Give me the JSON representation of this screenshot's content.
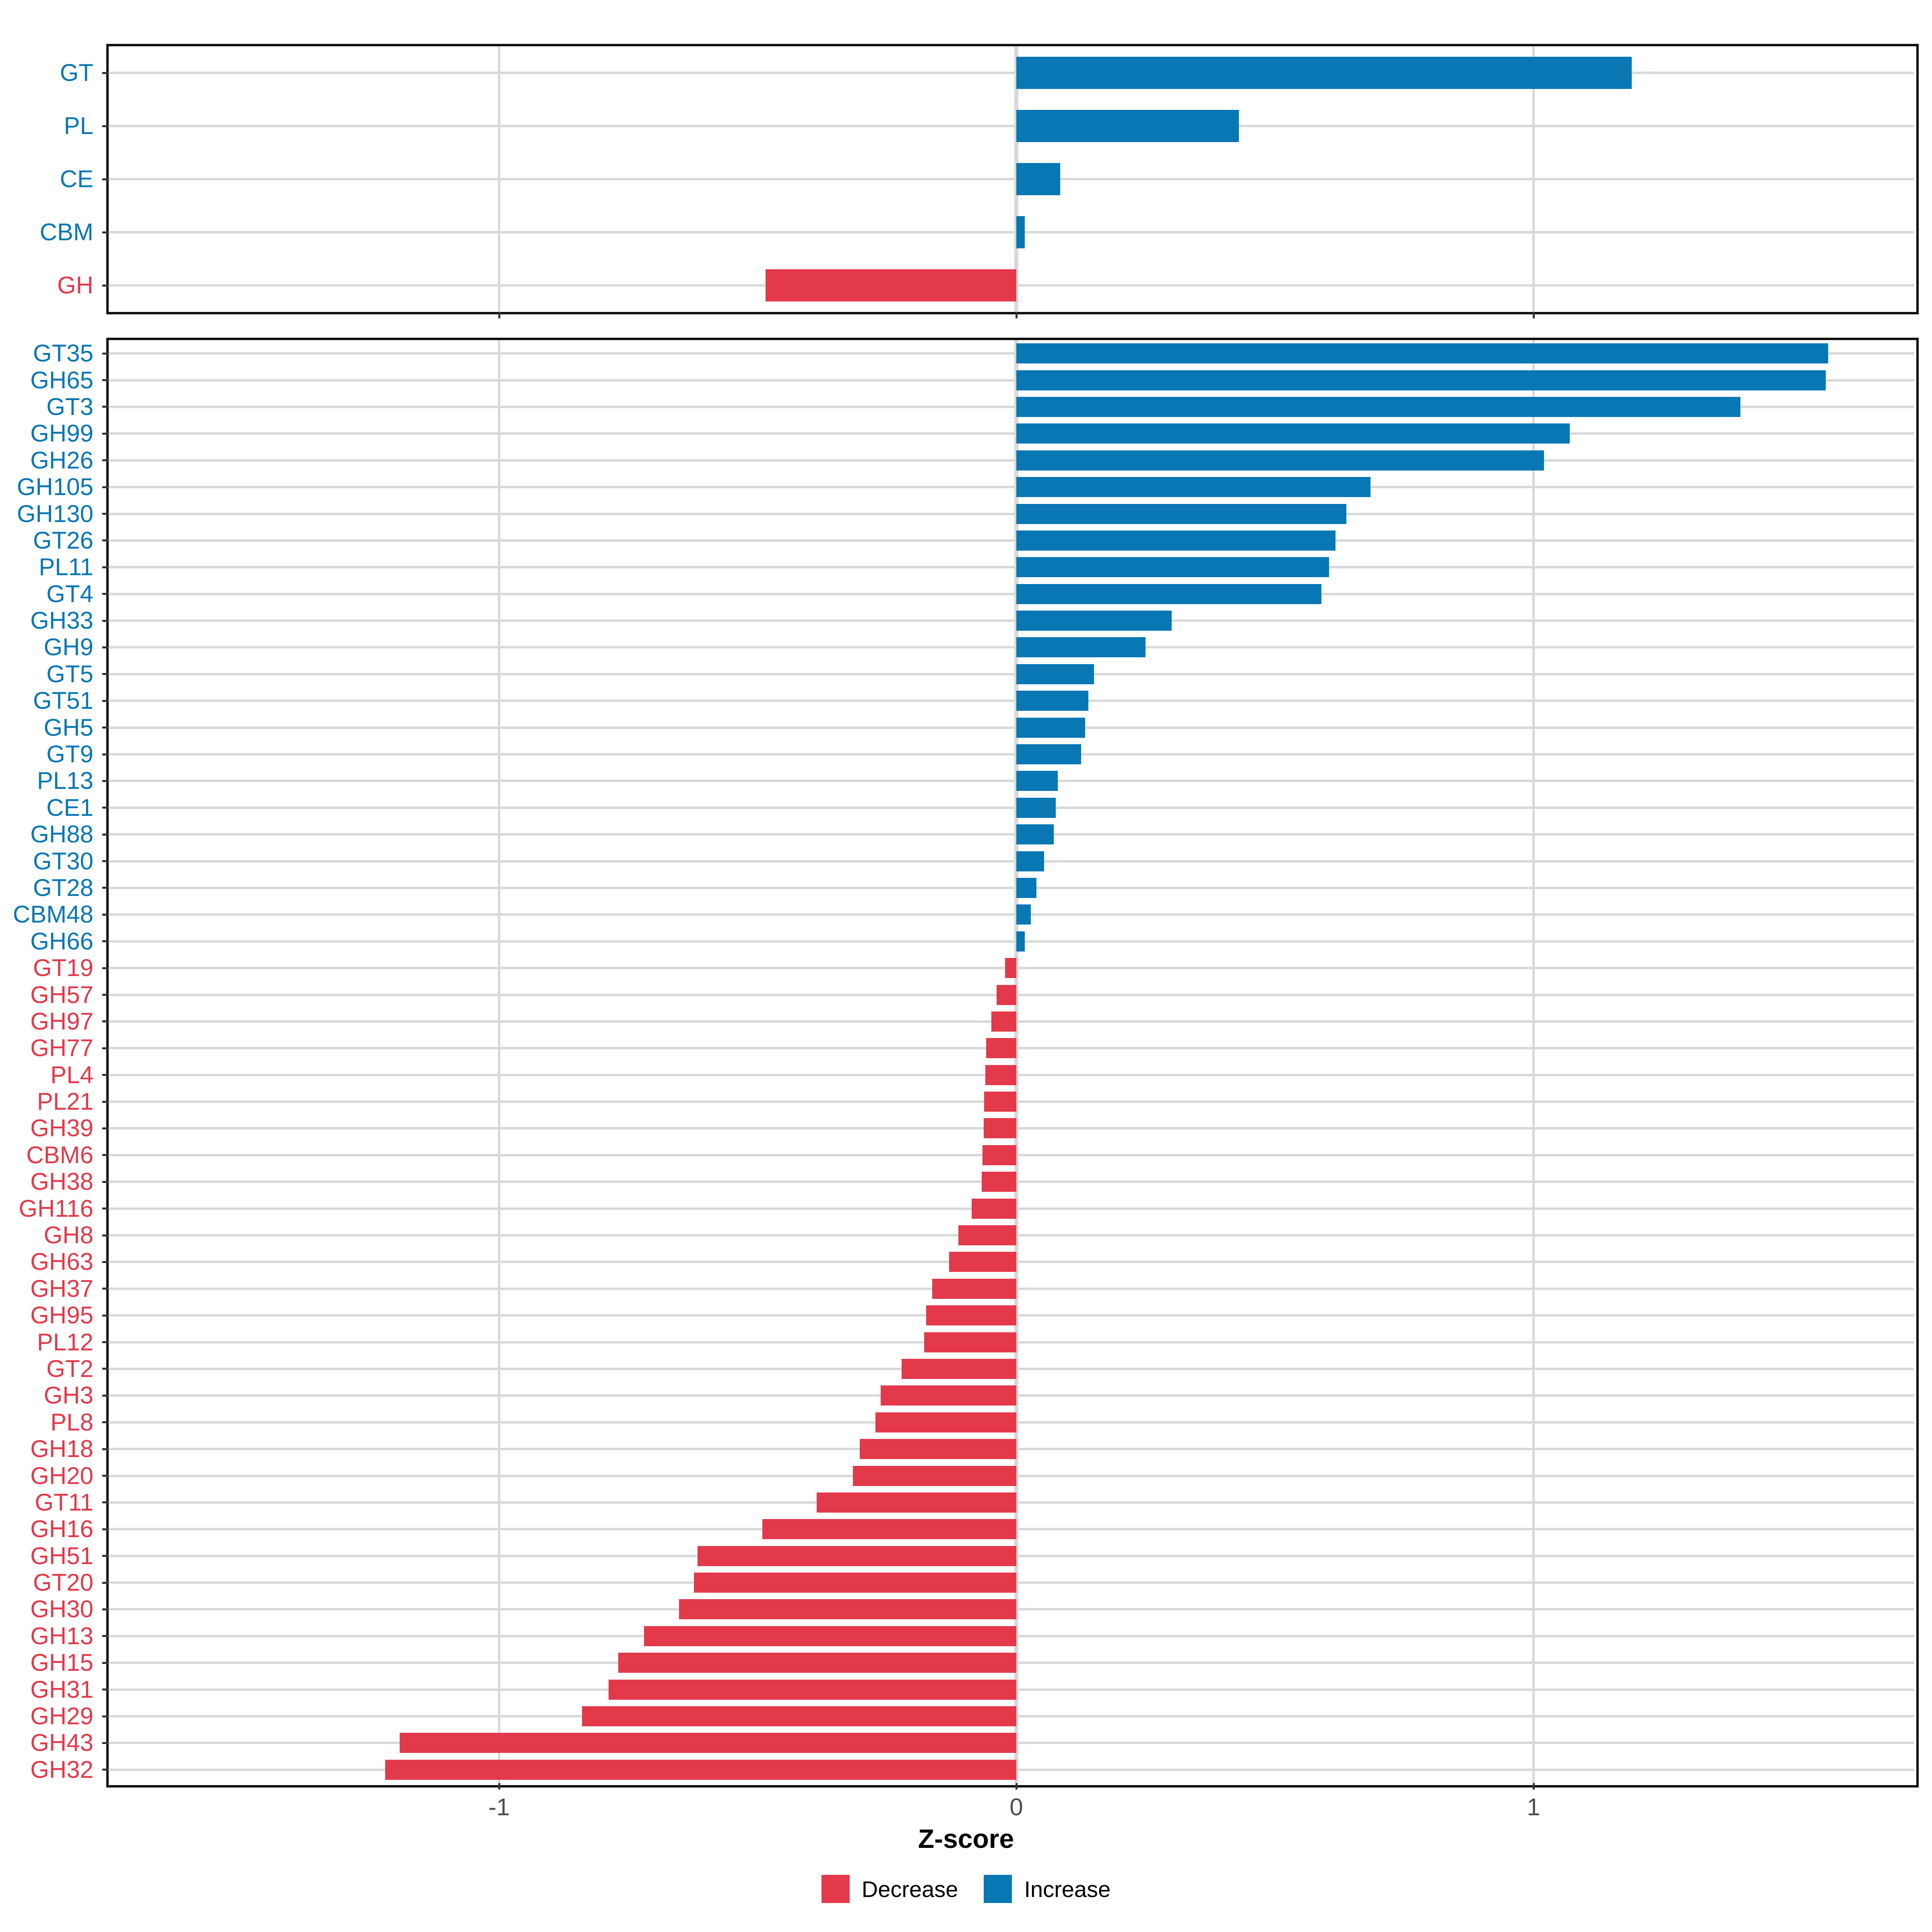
{
  "figure": {
    "background": "#ffffff",
    "description": "Two-panel horizontal bar chart of CAZyme Z-scores: top panel shows CAZyme classes, bottom panel shows CAZyme families, bars colored by direction of change"
  },
  "axis": {
    "xlabel": "Z-score",
    "tick_labels": [
      "-1",
      "0",
      "1"
    ],
    "tick_values": [
      -1,
      0,
      1
    ]
  },
  "legend": {
    "position": "bottom",
    "entries": [
      {
        "label": "Decrease",
        "color": "#e3394a"
      },
      {
        "label": "Increase",
        "color": "#0877b4"
      }
    ]
  },
  "colors": {
    "increase": "#0877b4",
    "decrease": "#e3394a",
    "gridline": "#d9d9d9",
    "axis_text": "#4d4d4d",
    "tick_mark": "#333333",
    "panel_border": "#111111"
  },
  "chart_data": [
    {
      "type": "bar",
      "orientation": "horizontal",
      "panel": "cazyme-classes",
      "title": "",
      "xlabel": "",
      "ylabel": "",
      "xlim": [
        -1.75,
        1.74
      ],
      "x_ticks": [
        -1,
        0,
        1
      ],
      "x_tick_labels_shown": false,
      "grid": true,
      "color_rule": "positive values use increase color, negative values use decrease color; y-axis labels colored the same way",
      "categories": [
        "GT",
        "PL",
        "CE",
        "CBM",
        "GH"
      ],
      "values": [
        1.19,
        0.43,
        0.085,
        0.016,
        -0.485
      ]
    },
    {
      "type": "bar",
      "orientation": "horizontal",
      "panel": "cazyme-families",
      "title": "",
      "xlabel": "Z-score",
      "ylabel": "",
      "xlim": [
        -1.75,
        1.74
      ],
      "x_ticks": [
        -1,
        0,
        1
      ],
      "x_tick_labels_shown": true,
      "grid": true,
      "color_rule": "positive values use increase color, negative values use decrease color; y-axis labels colored the same way",
      "categories": [
        "GT35",
        "GH65",
        "GT3",
        "GH99",
        "GH26",
        "GH105",
        "GH130",
        "GT26",
        "PL11",
        "GT4",
        "GH33",
        "GH9",
        "GT5",
        "GT51",
        "GH5",
        "GT9",
        "PL13",
        "CE1",
        "GH88",
        "GT30",
        "GT28",
        "CBM48",
        "GH66",
        "GT19",
        "GH57",
        "GH97",
        "GH77",
        "PL4",
        "PL21",
        "GH39",
        "CBM6",
        "GH38",
        "GH116",
        "GH8",
        "GH63",
        "GH37",
        "GH95",
        "PL12",
        "GT2",
        "GH3",
        "PL8",
        "GH18",
        "GH20",
        "GT11",
        "GH16",
        "GH51",
        "GT20",
        "GH30",
        "GH13",
        "GH15",
        "GH31",
        "GH29",
        "GH43",
        "GH32"
      ],
      "values": [
        1.57,
        1.565,
        1.4,
        1.07,
        1.02,
        0.685,
        0.638,
        0.617,
        0.605,
        0.59,
        0.3,
        0.25,
        0.15,
        0.139,
        0.133,
        0.125,
        0.08,
        0.076,
        0.072,
        0.054,
        0.039,
        0.028,
        0.016,
        -0.022,
        -0.038,
        -0.048,
        -0.058,
        -0.06,
        -0.062,
        -0.063,
        -0.065,
        -0.067,
        -0.086,
        -0.112,
        -0.13,
        -0.163,
        -0.174,
        -0.178,
        -0.222,
        -0.262,
        -0.272,
        -0.303,
        -0.316,
        -0.386,
        -0.491,
        -0.616,
        -0.623,
        -0.652,
        -0.72,
        -0.77,
        -0.788,
        -0.84,
        -1.192,
        -1.22
      ]
    }
  ]
}
